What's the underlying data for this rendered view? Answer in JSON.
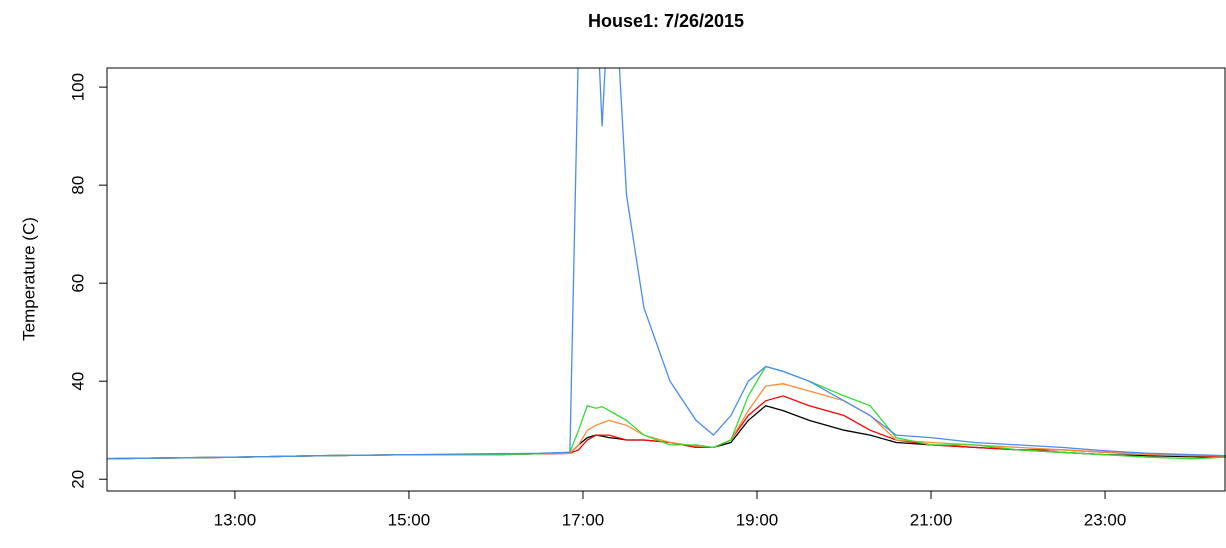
{
  "chart_data": {
    "type": "line",
    "title": "House1: 7/26/2015",
    "y_label": "Temperature (C)",
    "x": [
      11.53,
      12,
      13,
      14,
      15,
      16,
      16.5,
      16.85,
      16.95,
      17.05,
      17.15,
      17.22,
      17.3,
      17.4,
      17.5,
      17.7,
      18,
      18.3,
      18.5,
      18.7,
      18.9,
      19.1,
      19.3,
      19.6,
      20,
      20.3,
      20.6,
      21,
      21.5,
      22,
      22.5,
      23,
      23.5,
      24,
      24.39
    ],
    "series": [
      {
        "color": "#000000",
        "values": [
          24.2,
          24.3,
          24.5,
          24.8,
          25,
          25,
          25.2,
          25.3,
          27,
          28.5,
          29,
          28.8,
          28.5,
          28.3,
          28,
          28,
          27.5,
          26.5,
          26.5,
          27.5,
          32,
          35,
          34,
          32,
          30,
          29,
          27.5,
          27,
          26.5,
          26,
          25.5,
          25,
          24.8,
          24.6,
          24.5
        ]
      },
      {
        "color": "#ff0000",
        "values": [
          24.2,
          24.3,
          24.5,
          24.8,
          25,
          25,
          25.2,
          25.3,
          26,
          28,
          29,
          29,
          29,
          28.5,
          28,
          28,
          27.5,
          26.5,
          26.5,
          28,
          33,
          36,
          37,
          35,
          33,
          30,
          28,
          27,
          26.5,
          26,
          26,
          25.5,
          25,
          24.8,
          24.6
        ]
      },
      {
        "color": "#ff8c3a",
        "values": [
          24.2,
          24.3,
          24.5,
          24.8,
          25,
          25,
          25.2,
          25.3,
          27,
          30,
          31,
          31.5,
          32,
          31.5,
          31,
          29,
          27.5,
          26.8,
          26.5,
          28,
          34,
          39,
          39.5,
          38,
          36,
          33,
          28,
          27.5,
          27,
          26.5,
          26,
          25.5,
          25,
          24.8,
          24.8
        ]
      },
      {
        "color": "#33dd33",
        "values": [
          24.2,
          24.3,
          24.5,
          24.8,
          25,
          25,
          25.2,
          25.5,
          30,
          35,
          34.5,
          34.8,
          34,
          33,
          32,
          29,
          27,
          27,
          26.5,
          28,
          37,
          43,
          42,
          40,
          37,
          35,
          28.5,
          27,
          27,
          26,
          25.5,
          25,
          24.5,
          24.2,
          24.5
        ]
      },
      {
        "color": "#4a8cf0",
        "values": [
          24.2,
          24.3,
          24.5,
          24.8,
          25,
          25.2,
          25.3,
          25.5,
          110,
          120,
          120,
          92,
          120,
          110,
          78,
          55,
          40,
          32,
          29,
          33,
          40,
          43,
          42,
          40,
          36,
          33,
          29,
          28.5,
          27.5,
          27,
          26.5,
          25.8,
          25.3,
          25,
          24.8
        ]
      }
    ],
    "xlim": [
      11.53,
      24.39
    ],
    "xticks": [
      {
        "value": 13,
        "label": "13:00"
      },
      {
        "value": 15,
        "label": "15:00"
      },
      {
        "value": 17,
        "label": "17:00"
      },
      {
        "value": 19,
        "label": "19:00"
      },
      {
        "value": 21,
        "label": "21:00"
      },
      {
        "value": 23,
        "label": "23:00"
      }
    ],
    "ylim": [
      17.6,
      103.9
    ],
    "yticks": [
      20,
      40,
      60,
      80,
      100
    ]
  }
}
